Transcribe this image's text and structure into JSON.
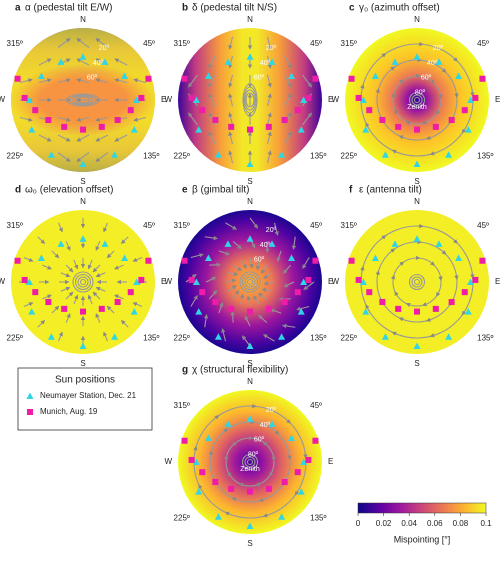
{
  "panels": [
    {
      "letter": "a",
      "title": "α (pedestal tilt E/W)",
      "elevation_labels": [
        "20º",
        "40º",
        "60º"
      ]
    },
    {
      "letter": "b",
      "title": "δ (pedestal tilt N/S)",
      "elevation_labels": [
        "20º",
        "40º",
        "60º"
      ]
    },
    {
      "letter": "c",
      "title": "γ₀ (azimuth offset)",
      "elevation_labels": [
        "20º",
        "40º",
        "60º",
        "80º"
      ],
      "zenith": "Zenith"
    },
    {
      "letter": "d",
      "title": "ω₀ (elevation offset)",
      "elevation_labels": []
    },
    {
      "letter": "e",
      "title": "β (gimbal tilt)",
      "elevation_labels": [
        "20º",
        "40º",
        "60º"
      ]
    },
    {
      "letter": "f",
      "title": "ε (antenna tilt)",
      "elevation_labels": []
    },
    {
      "letter": "g",
      "title": "χ (structural flexibility)",
      "elevation_labels": [
        "20º",
        "40º",
        "60º",
        "80º"
      ],
      "zenith": "Zenith"
    }
  ],
  "compass": {
    "N": "N",
    "E": "E",
    "S": "S",
    "W": "W",
    "ne": "45º",
    "se": "135º",
    "sw": "225º",
    "nw": "315º"
  },
  "legend": {
    "title": "Sun positions",
    "series": [
      {
        "name": "Neumayer Station, Dec. 21",
        "color": "#2ed6e6",
        "azimuth": [
          0,
          30,
          60,
          90,
          120,
          150,
          180,
          210,
          240,
          270,
          300,
          330
        ],
        "elevation": [
          36,
          35,
          30,
          23,
          16,
          11,
          10,
          11,
          16,
          23,
          30,
          35
        ]
      },
      {
        "name": "Munich, Aug. 19",
        "color": "#ee1ca8",
        "azimuth": [
          72,
          88,
          102,
          120,
          145,
          180,
          215,
          240,
          258,
          272,
          288
        ],
        "elevation": [
          4,
          17,
          29,
          40,
          49,
          53,
          49,
          40,
          29,
          17,
          4
        ]
      }
    ]
  },
  "colorbar": {
    "label": "Mispointing [°]",
    "lim": [
      0,
      0.1
    ],
    "ticks": [
      0,
      0.02,
      0.04,
      0.06,
      0.08,
      0.1
    ]
  }
}
